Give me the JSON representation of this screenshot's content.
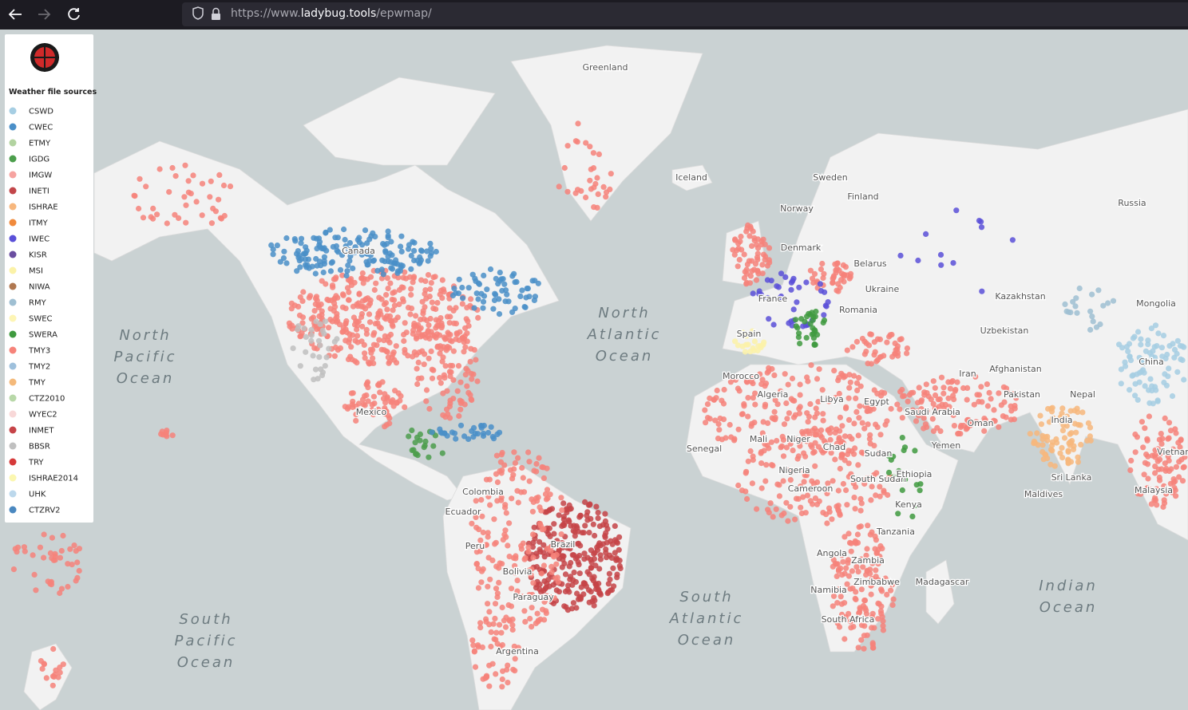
{
  "browser": {
    "url_parts": [
      "https://www.",
      "ladybug.tools",
      "/epwmap/"
    ]
  },
  "legend": {
    "title": "Weather file sources",
    "items": [
      {
        "name": "CSWD",
        "color": "#a6cee3"
      },
      {
        "name": "CWEC",
        "color": "#4a8fc8"
      },
      {
        "name": "ETMY",
        "color": "#b2d3a0"
      },
      {
        "name": "IGDG",
        "color": "#4c9e4c"
      },
      {
        "name": "IMGW",
        "color": "#f6a3a0"
      },
      {
        "name": "INETI",
        "color": "#c2464a"
      },
      {
        "name": "ISHRAE",
        "color": "#f7b77d"
      },
      {
        "name": "ITMY",
        "color": "#f08a3c"
      },
      {
        "name": "IWEC",
        "color": "#5a50d8"
      },
      {
        "name": "KISR",
        "color": "#6a4ea0"
      },
      {
        "name": "MSI",
        "color": "#fbf2a8"
      },
      {
        "name": "NIWA",
        "color": "#b07850"
      },
      {
        "name": "RMY",
        "color": "#9fbfd2"
      },
      {
        "name": "SWEC",
        "color": "#fdf5b5"
      },
      {
        "name": "SWERA",
        "color": "#3f9a3f"
      },
      {
        "name": "TMY3",
        "color": "#f6837a"
      },
      {
        "name": "TMY2",
        "color": "#9ec0dc"
      },
      {
        "name": "TMY",
        "color": "#f4b97a"
      },
      {
        "name": "CTZ2010",
        "color": "#b8d8a8"
      },
      {
        "name": "WYEC2",
        "color": "#f8d8d8"
      },
      {
        "name": "INMET",
        "color": "#c64448"
      },
      {
        "name": "BBSR",
        "color": "#c0c0c0"
      },
      {
        "name": "TRY",
        "color": "#d63a3a"
      },
      {
        "name": "ISHRAE2014",
        "color": "#fbf7b0"
      },
      {
        "name": "UHK",
        "color": "#bcd8ec"
      },
      {
        "name": "CTZRV2",
        "color": "#4a88c0"
      }
    ]
  },
  "places": [
    "Greenland",
    "Iceland",
    "Sweden",
    "Finland",
    "Norway",
    "Russia",
    "Denmark",
    "Belarus",
    "Canada",
    "Ukraine",
    "Kazakhstan",
    "Mongolia",
    "France",
    "Romania",
    "Uzbekistan",
    "Spain",
    "China",
    "Afghanistan",
    "Iran",
    "Morocco",
    "Algeria",
    "Libya",
    "Egypt",
    "Pakistan",
    "Saudi Arabia",
    "Nepal",
    "Oman",
    "India",
    "Mexico",
    "Mali",
    "Niger",
    "Chad",
    "Sudan",
    "Yemen",
    "Senegal",
    "Nigeria",
    "South Sudan",
    "Ethiopia",
    "Colombia",
    "Cameroon",
    "Sri Lanka",
    "Maldives",
    "Ecuador",
    "Kenya",
    "Malaysia",
    "Peru",
    "Brazil",
    "Tanzania",
    "Angola",
    "Zambia",
    "Bolivia",
    "Madagascar",
    "Namibia",
    "Zimbabwe",
    "Paraguay",
    "South Africa",
    "Argentina",
    "Vietnam"
  ],
  "oceans": [
    [
      "North",
      "Pacific",
      "Ocean"
    ],
    [
      "North",
      "Atlantic",
      "Ocean"
    ],
    [
      "South",
      "Pacific",
      "Ocean"
    ],
    [
      "South",
      "Atlantic",
      "Ocean"
    ],
    [
      "Indian",
      "Ocean"
    ]
  ]
}
